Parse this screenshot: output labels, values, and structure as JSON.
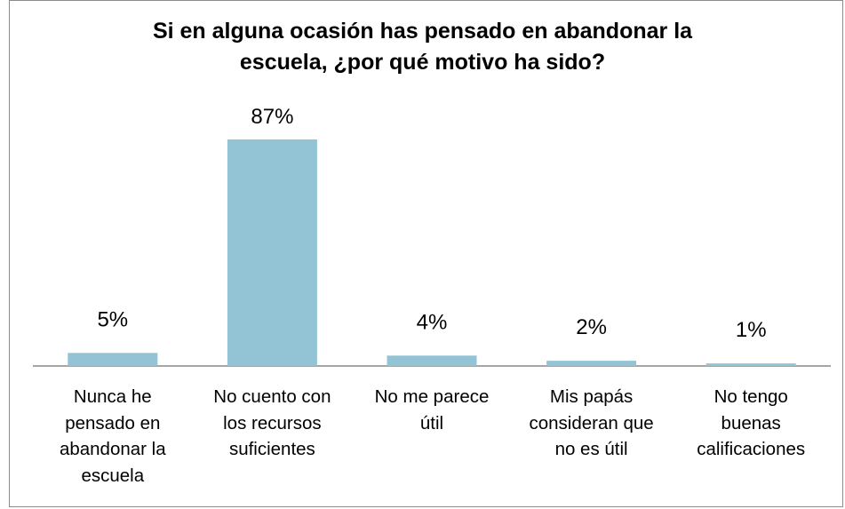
{
  "chart_data": {
    "type": "bar",
    "title": "Si en alguna ocasión has pensado en abandonar la escuela, ¿por qué motivo ha sido?",
    "title_lines": [
      "Si en alguna ocasión has pensado en abandonar la",
      "escuela, ¿por qué motivo ha sido?"
    ],
    "categories": [
      "Nunca he pensado en abandonar la escuela",
      "No cuento con los recursos suficientes",
      "No me parece útil",
      "Mis papás consideran que no es útil",
      "No tengo buenas calificaciones"
    ],
    "category_lines": [
      [
        "Nunca he",
        "pensado en",
        "abandonar la",
        "escuela"
      ],
      [
        "No cuento con",
        "los recursos",
        "suficientes"
      ],
      [
        "No me parece",
        "útil"
      ],
      [
        "Mis papás",
        "consideran que",
        "no es útil"
      ],
      [
        "No tengo",
        "buenas",
        "calificaciones"
      ]
    ],
    "values": [
      5,
      87,
      4,
      2,
      1
    ],
    "data_labels": [
      "5%",
      "87%",
      "4%",
      "2%",
      "1%"
    ],
    "ylim": [
      0,
      87
    ],
    "grid": false,
    "bar_color": "#93c4d5",
    "axis_color": "#878787"
  }
}
